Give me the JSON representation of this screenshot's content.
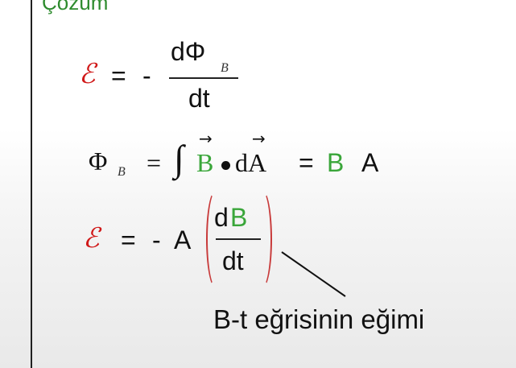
{
  "heading": "Çözüm",
  "eq1": {
    "emf": "ℰ",
    "equals": "=",
    "minus": "-",
    "numerator": "dΦ",
    "num_sub": "B",
    "denominator": "dt"
  },
  "eq2": {
    "phi": "Φ",
    "phi_sub": "B",
    "equals": "=",
    "integral": "∫",
    "vecB": "B",
    "dA": "dA",
    "equals2": "=",
    "B": "B",
    "A": "A"
  },
  "eq3": {
    "emf": "ℰ",
    "equals": "=",
    "minus": "-",
    "A": "A",
    "num_d": "d",
    "num_B": "B",
    "denominator": "dt"
  },
  "annotation": "B-t eğrisinin eğimi"
}
